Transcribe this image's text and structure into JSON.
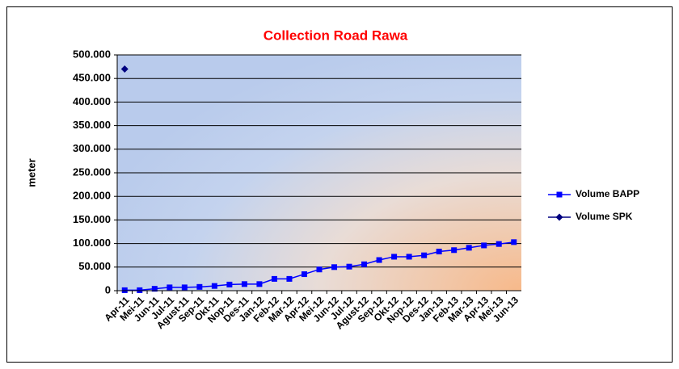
{
  "chart_data": {
    "type": "line",
    "title": "Collection Road Rawa",
    "y_label": "meter",
    "categories": [
      "Apr-11",
      "Mei-11",
      "Jun-11",
      "Jul-11",
      "Agust-11",
      "Sep-11",
      "Okt-11",
      "Nop-11",
      "Des-11",
      "Jan-12",
      "Feb-12",
      "Mar-12",
      "Apr-12",
      "Mei-12",
      "Jun-12",
      "Jul-12",
      "Agust-12",
      "Sep-12",
      "Okt-12",
      "Nop-12",
      "Des-12",
      "Jan-13",
      "Feb-13",
      "Mar-13",
      "Apr-13",
      "Mei-13",
      "Jun-13"
    ],
    "series": [
      {
        "name": "Volume BAPP",
        "color": "#0000ff",
        "marker": "square",
        "values": [
          1000,
          1000,
          4000,
          7000,
          7000,
          8000,
          10000,
          13000,
          14000,
          14000,
          25000,
          25000,
          35000,
          45000,
          50000,
          51000,
          56000,
          65000,
          72000,
          72000,
          75000,
          83000,
          86000,
          91000,
          96000,
          99000,
          103000
        ]
      },
      {
        "name": "Volume SPK",
        "color": "#000080",
        "marker": "diamond",
        "values": [
          470000,
          null,
          null,
          null,
          null,
          null,
          null,
          null,
          null,
          null,
          null,
          null,
          null,
          null,
          null,
          null,
          null,
          null,
          null,
          null,
          null,
          null,
          null,
          null,
          null,
          null,
          null
        ]
      }
    ],
    "ylim": [
      0,
      500000
    ],
    "yticks": [
      0,
      {
        "value": 50000,
        "label": "50.000"
      },
      {
        "value": 100000,
        "label": "100.000"
      },
      {
        "value": 150000,
        "label": "150.000"
      },
      {
        "value": 200000,
        "label": "200.000"
      },
      {
        "value": 250000,
        "label": "250.000"
      },
      {
        "value": 300000,
        "label": "300.000"
      },
      {
        "value": 350000,
        "label": "350.000"
      },
      {
        "value": 400000,
        "label": "400.000"
      },
      {
        "value": 450000,
        "label": "450.000"
      },
      {
        "value": 500000,
        "label": "500.000"
      }
    ],
    "grid": true,
    "legend": "right"
  }
}
